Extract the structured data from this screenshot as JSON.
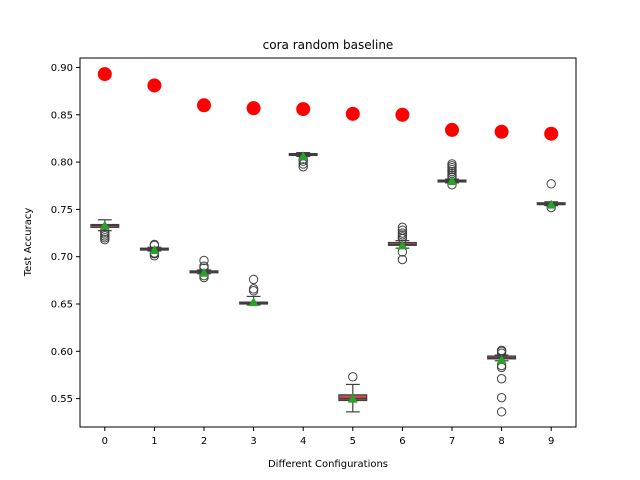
{
  "chart_data": {
    "type": "box",
    "title": "cora random baseline",
    "xlabel": "Different Configurations",
    "ylabel": "Test Accuracy",
    "categories": [
      "0",
      "1",
      "2",
      "3",
      "4",
      "5",
      "6",
      "7",
      "8",
      "9"
    ],
    "ylim": [
      0.52,
      0.91
    ],
    "yticks": [
      0.55,
      0.6,
      0.65,
      0.7,
      0.75,
      0.8,
      0.85,
      0.9
    ],
    "ytick_labels": [
      "0.55",
      "0.60",
      "0.65",
      "0.70",
      "0.75",
      "0.80",
      "0.85",
      "0.90"
    ],
    "grid": false,
    "colors": {
      "box_fill": "#c0504d",
      "box_edge": "#3f3f3f",
      "mean_marker": "#2ca02c",
      "outlier_edge": "#3f3f3f",
      "highlight": "#ff0000"
    },
    "highlight_points": {
      "values": [
        0.893,
        0.881,
        0.86,
        0.857,
        0.856,
        0.851,
        0.85,
        0.834,
        0.832,
        0.83
      ]
    },
    "boxes": [
      {
        "q1": 0.731,
        "median": 0.733,
        "q3": 0.734,
        "whisker_low": 0.7275,
        "whisker_high": 0.739,
        "mean": 0.733,
        "outliers": [
          0.718,
          0.72,
          0.722,
          0.724,
          0.726
        ]
      },
      {
        "q1": 0.707,
        "median": 0.708,
        "q3": 0.709,
        "whisker_low": 0.706,
        "whisker_high": 0.71,
        "mean": 0.707,
        "outliers": [
          0.701,
          0.703,
          0.704,
          0.712,
          0.713
        ]
      },
      {
        "q1": 0.683,
        "median": 0.684,
        "q3": 0.685,
        "whisker_low": 0.682,
        "whisker_high": 0.686,
        "mean": 0.683,
        "outliers": [
          0.678,
          0.68,
          0.688,
          0.69,
          0.696
        ]
      },
      {
        "q1": 0.65,
        "median": 0.651,
        "q3": 0.652,
        "whisker_low": 0.649,
        "whisker_high": 0.658,
        "mean": 0.652,
        "outliers": [
          0.664,
          0.666,
          0.676
        ]
      },
      {
        "q1": 0.807,
        "median": 0.808,
        "q3": 0.809,
        "whisker_low": 0.806,
        "whisker_high": 0.81,
        "mean": 0.806,
        "outliers": [
          0.795,
          0.798,
          0.801,
          0.803
        ]
      },
      {
        "q1": 0.548,
        "median": 0.55,
        "q3": 0.554,
        "whisker_low": 0.536,
        "whisker_high": 0.565,
        "mean": 0.55,
        "outliers": [
          0.573
        ]
      },
      {
        "q1": 0.712,
        "median": 0.713,
        "q3": 0.715,
        "whisker_low": 0.709,
        "whisker_high": 0.717,
        "mean": 0.712,
        "outliers": [
          0.697,
          0.705,
          0.719,
          0.721,
          0.723,
          0.725,
          0.728,
          0.731
        ]
      },
      {
        "q1": 0.779,
        "median": 0.78,
        "q3": 0.781,
        "whisker_low": 0.778,
        "whisker_high": 0.782,
        "mean": 0.78,
        "outliers": [
          0.776,
          0.784,
          0.786,
          0.788,
          0.79,
          0.792,
          0.794,
          0.796,
          0.798
        ]
      },
      {
        "q1": 0.592,
        "median": 0.593,
        "q3": 0.595,
        "whisker_low": 0.59,
        "whisker_high": 0.596,
        "mean": 0.591,
        "outliers": [
          0.536,
          0.551,
          0.571,
          0.583,
          0.585,
          0.598,
          0.6,
          0.601
        ]
      },
      {
        "q1": 0.755,
        "median": 0.756,
        "q3": 0.757,
        "whisker_low": 0.754,
        "whisker_high": 0.758,
        "mean": 0.755,
        "outliers": [
          0.752,
          0.777
        ]
      }
    ]
  }
}
